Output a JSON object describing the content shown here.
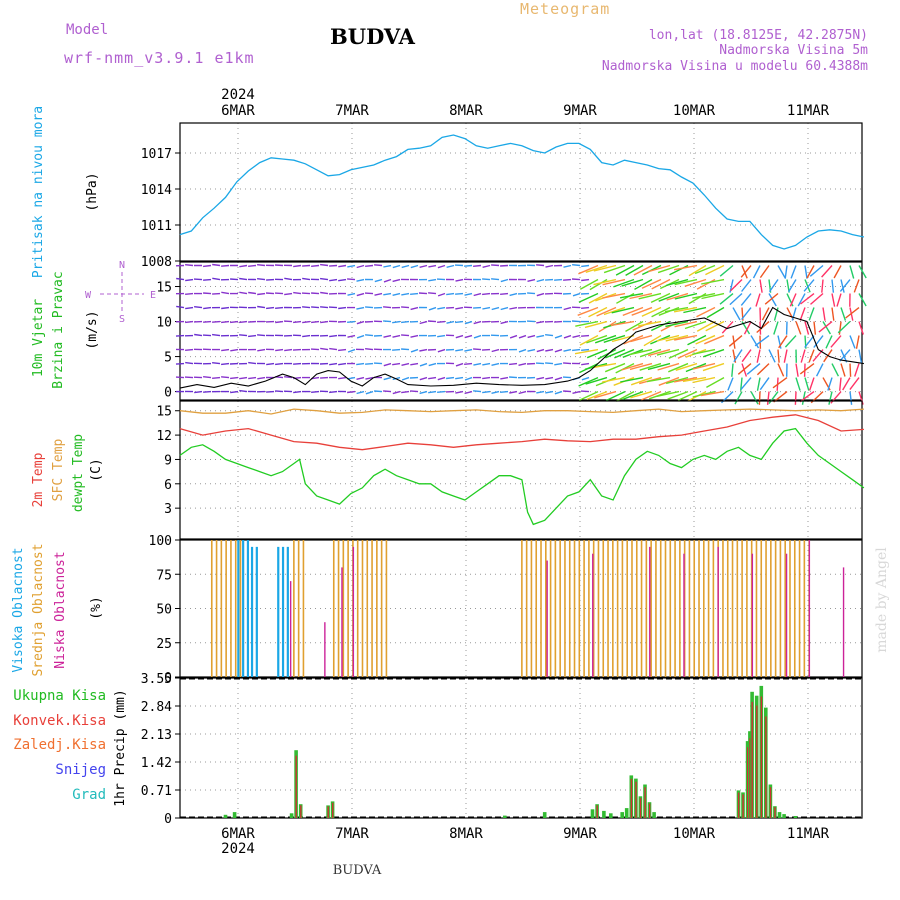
{
  "header": {
    "model_label": "Model",
    "model_name": "wrf-nmm_v3.9.1  e1km",
    "title": "BUDVA",
    "meteogram_label": "Meteogram",
    "lonlat": "lon,lat (18.8125E, 42.2875N)",
    "altitude": "Nadmorska Visina 5m",
    "model_altitude": "Nadmorska Visina u modelu 60.4388m",
    "bottom_title": "BUDVA",
    "watermark": "made by Angel"
  },
  "time_axis": {
    "year": "2024",
    "days": [
      "6MAR",
      "7MAR",
      "8MAR",
      "9MAR",
      "10MAR",
      "11MAR"
    ]
  },
  "colors": {
    "pressure": "#1aa7e6",
    "temp2m": "#e8403a",
    "sfc": "#e0a040",
    "dewpt": "#22cc22",
    "high_cloud": "#1aa7e6",
    "mid_cloud": "#e0a030",
    "low_cloud": "#cc2299",
    "precip_total": "#33bb33",
    "precip_conv": "#cc3333",
    "wind_purple": "#8833cc",
    "wind_blue": "#3399ee"
  },
  "chart_data": [
    {
      "type": "line",
      "panel": "pressure",
      "ylabel_lines": [
        "Pritisak na nivou mora"
      ],
      "unit": "(hPa)",
      "y_ticks": [
        "1008",
        "1011",
        "1014",
        "1017"
      ],
      "ylim": [
        1008,
        1019.5
      ],
      "series": [
        {
          "x_days": [
            0.0,
            0.1,
            0.2,
            0.3,
            0.4,
            0.5,
            0.6,
            0.7,
            0.8,
            0.9,
            1.0,
            1.1,
            1.2,
            1.3,
            1.4,
            1.5,
            1.6,
            1.7,
            1.8,
            1.9,
            2.0,
            2.1,
            2.2,
            2.3,
            2.4,
            2.5,
            2.6,
            2.7,
            2.8,
            2.9,
            3.0,
            3.1,
            3.2,
            3.3,
            3.4,
            3.5,
            3.6,
            3.7,
            3.8,
            3.9,
            4.0,
            4.1,
            4.2,
            4.3,
            4.4,
            4.5,
            4.6,
            4.7,
            4.8,
            4.9,
            5.0,
            5.1,
            5.2,
            5.3,
            5.4,
            5.5,
            5.6,
            5.7,
            5.8,
            5.9,
            6.0
          ],
          "values": [
            1010.2,
            1010.5,
            1011.6,
            1012.4,
            1013.3,
            1014.6,
            1015.5,
            1016.2,
            1016.6,
            1016.5,
            1016.4,
            1016.1,
            1015.6,
            1015.1,
            1015.2,
            1015.6,
            1015.8,
            1016.0,
            1016.4,
            1016.7,
            1017.3,
            1017.4,
            1017.6,
            1018.3,
            1018.5,
            1018.2,
            1017.6,
            1017.4,
            1017.6,
            1017.8,
            1017.6,
            1017.2,
            1017.0,
            1017.5,
            1017.8,
            1017.8,
            1017.3,
            1016.2,
            1016.0,
            1016.4,
            1016.2,
            1016.0,
            1015.7,
            1015.6,
            1015.0,
            1014.5,
            1013.5,
            1012.4,
            1011.5,
            1011.3,
            1011.3,
            1010.2,
            1009.3,
            1009.0,
            1009.3,
            1010.0,
            1010.5,
            1010.6,
            1010.5,
            1010.2,
            1010.0
          ]
        }
      ]
    },
    {
      "type": "line",
      "panel": "wind",
      "ylabel_lines": [
        "10m Vjetar",
        "Brzina i Pravac"
      ],
      "unit": "(m/s)",
      "y_ticks": [
        "0",
        "5",
        "10",
        "15"
      ],
      "ylim": [
        -1.2,
        18.5
      ],
      "compass": {
        "n": "N",
        "s": "S",
        "e": "E",
        "w": "W"
      },
      "series": [
        {
          "name": "speed",
          "x_days": [
            0.0,
            0.15,
            0.3,
            0.45,
            0.6,
            0.75,
            0.9,
            1.0,
            1.1,
            1.2,
            1.3,
            1.4,
            1.5,
            1.6,
            1.7,
            1.8,
            1.9,
            2.0,
            2.2,
            2.4,
            2.6,
            2.8,
            3.0,
            3.2,
            3.4,
            3.5,
            3.6,
            3.7,
            3.8,
            3.9,
            4.0,
            4.2,
            4.4,
            4.6,
            4.8,
            5.0,
            5.1,
            5.2,
            5.3,
            5.4,
            5.5,
            5.6,
            5.7,
            5.8,
            6.0
          ],
          "values": [
            0.5,
            1.0,
            0.6,
            1.2,
            0.8,
            1.5,
            2.5,
            2.0,
            1.0,
            2.5,
            3.0,
            2.8,
            1.5,
            0.8,
            2.0,
            2.5,
            1.8,
            1.0,
            0.8,
            0.9,
            1.2,
            1.0,
            0.9,
            1.0,
            1.5,
            2.0,
            3.0,
            4.5,
            6.0,
            7.0,
            8.5,
            9.5,
            10.0,
            10.5,
            9.0,
            10.0,
            9.0,
            12.0,
            11.0,
            10.5,
            10.0,
            6.0,
            5.0,
            4.5,
            4.0
          ]
        }
      ]
    },
    {
      "type": "line",
      "panel": "temperature",
      "ylabel_lines": [
        "2m Temp",
        "SFC Temp",
        "dewpt Temp"
      ],
      "unit": "(C)",
      "y_ticks": [
        "3",
        "6",
        "9",
        "12",
        "15"
      ],
      "ylim": [
        -0.8,
        16.2
      ],
      "series": [
        {
          "name": "2m Temp",
          "x_days": [
            0.0,
            0.2,
            0.4,
            0.6,
            0.8,
            1.0,
            1.2,
            1.4,
            1.6,
            1.8,
            2.0,
            2.2,
            2.4,
            2.6,
            2.8,
            3.0,
            3.2,
            3.4,
            3.6,
            3.8,
            4.0,
            4.2,
            4.4,
            4.6,
            4.8,
            5.0,
            5.2,
            5.4,
            5.6,
            5.8,
            6.0
          ],
          "values": [
            12.8,
            12.0,
            12.5,
            12.8,
            12.0,
            11.2,
            11.0,
            10.5,
            10.2,
            10.6,
            11.0,
            10.8,
            10.5,
            10.8,
            11.0,
            11.2,
            11.5,
            11.3,
            11.2,
            11.5,
            11.5,
            11.8,
            12.0,
            12.5,
            13.0,
            13.8,
            14.2,
            14.5,
            13.8,
            12.5,
            12.7
          ]
        },
        {
          "name": "SFC Temp",
          "x_days": [
            0.0,
            0.2,
            0.4,
            0.6,
            0.8,
            1.0,
            1.2,
            1.4,
            1.6,
            1.8,
            2.0,
            2.2,
            2.4,
            2.6,
            2.8,
            3.0,
            3.2,
            3.4,
            3.6,
            3.8,
            4.0,
            4.2,
            4.4,
            4.6,
            4.8,
            5.0,
            5.2,
            5.4,
            5.6,
            5.8,
            6.0
          ],
          "values": [
            15.0,
            14.7,
            14.7,
            15.0,
            14.6,
            15.2,
            15.0,
            14.7,
            14.8,
            15.1,
            15.0,
            14.9,
            15.0,
            15.1,
            14.9,
            14.8,
            15.0,
            15.0,
            14.9,
            14.8,
            15.0,
            15.2,
            14.9,
            15.0,
            15.1,
            15.2,
            15.1,
            15.0,
            15.1,
            15.0,
            15.2
          ]
        },
        {
          "name": "dewpt Temp",
          "x_days": [
            0.0,
            0.1,
            0.2,
            0.3,
            0.4,
            0.5,
            0.6,
            0.7,
            0.8,
            0.9,
            1.0,
            1.05,
            1.1,
            1.2,
            1.3,
            1.4,
            1.5,
            1.6,
            1.7,
            1.8,
            1.9,
            2.0,
            2.1,
            2.2,
            2.3,
            2.4,
            2.5,
            2.6,
            2.7,
            2.8,
            2.9,
            3.0,
            3.05,
            3.1,
            3.2,
            3.3,
            3.4,
            3.5,
            3.6,
            3.7,
            3.8,
            3.9,
            4.0,
            4.1,
            4.2,
            4.3,
            4.4,
            4.5,
            4.6,
            4.7,
            4.8,
            4.9,
            5.0,
            5.1,
            5.2,
            5.3,
            5.4,
            5.5,
            5.6,
            5.7,
            5.8,
            5.9,
            6.0
          ],
          "values": [
            9.5,
            10.5,
            10.8,
            10.0,
            9.0,
            8.5,
            8.0,
            7.5,
            7.0,
            7.5,
            8.5,
            9.0,
            6.0,
            4.5,
            4.0,
            3.5,
            4.8,
            5.5,
            7.0,
            7.8,
            7.0,
            6.5,
            6.0,
            6.0,
            5.0,
            4.5,
            4.0,
            5.0,
            6.0,
            7.0,
            7.0,
            6.5,
            2.5,
            1.0,
            1.5,
            3.0,
            4.5,
            5.0,
            6.5,
            4.5,
            4.0,
            7.0,
            9.0,
            10.0,
            9.5,
            8.5,
            8.0,
            9.0,
            9.5,
            9.0,
            10.0,
            10.5,
            9.5,
            9.0,
            11.0,
            12.5,
            12.8,
            11.0,
            9.5,
            8.5,
            7.5,
            6.5,
            5.5
          ]
        }
      ]
    },
    {
      "type": "bar",
      "panel": "clouds",
      "ylabel_lines": [
        "Visoka Oblacnost",
        "Srednja Oblacnost",
        "Niska Oblacnost"
      ],
      "unit": "(%)",
      "y_ticks": [
        "0",
        "25",
        "50",
        "75",
        "100"
      ],
      "ylim": [
        0,
        100
      ],
      "mid_cloud_segments": [
        {
          "from": 0.28,
          "to": 0.55,
          "value": 100
        },
        {
          "from": 1.0,
          "to": 1.1,
          "value": 100
        },
        {
          "from": 1.35,
          "to": 1.85,
          "value": 100
        },
        {
          "from": 3.0,
          "to": 5.55,
          "value": 100
        }
      ],
      "high_cloud_segments": [
        {
          "from": 0.5,
          "to": 0.6,
          "value": 100
        },
        {
          "from": 0.62,
          "to": 0.68,
          "value": 95
        },
        {
          "from": 0.85,
          "to": 0.95,
          "value": 95
        }
      ],
      "low_cloud_x_days": [
        0.95,
        1.25,
        1.4,
        1.5,
        3.2,
        3.6,
        4.1,
        4.4,
        4.7,
        5.0,
        5.3,
        5.5,
        5.8
      ],
      "low_cloud_values": [
        70,
        40,
        80,
        95,
        85,
        90,
        95,
        90,
        95,
        90,
        90,
        100,
        80
      ]
    },
    {
      "type": "bar",
      "panel": "precip",
      "legend": [
        "Ukupna Kisa",
        "Konvek.Kisa",
        "Zaledj.Kisa",
        "Snijeg",
        "Grad"
      ],
      "unit": "1hr Precip (mm)",
      "y_ticks": [
        "0",
        "0.71",
        "1.42",
        "2.13",
        "2.84",
        "3.55"
      ],
      "ylim": [
        0,
        3.55
      ],
      "x_days": [
        0.4,
        0.48,
        0.98,
        1.02,
        1.06,
        1.3,
        1.34,
        2.85,
        3.2,
        3.62,
        3.66,
        3.72,
        3.78,
        3.88,
        3.92,
        3.96,
        4.0,
        4.04,
        4.08,
        4.12,
        4.16,
        4.9,
        4.94,
        4.98,
        5.0,
        5.02,
        5.06,
        5.1,
        5.14,
        5.18,
        5.22,
        5.26,
        5.3,
        5.4
      ],
      "values": [
        0.08,
        0.15,
        0.12,
        1.72,
        0.35,
        0.32,
        0.42,
        0.06,
        0.15,
        0.22,
        0.35,
        0.18,
        0.12,
        0.15,
        0.25,
        1.08,
        1.0,
        0.55,
        0.85,
        0.4,
        0.15,
        0.7,
        0.65,
        1.95,
        2.2,
        3.2,
        3.1,
        3.35,
        2.8,
        0.85,
        0.3,
        0.15,
        0.1,
        0.05
      ]
    }
  ]
}
